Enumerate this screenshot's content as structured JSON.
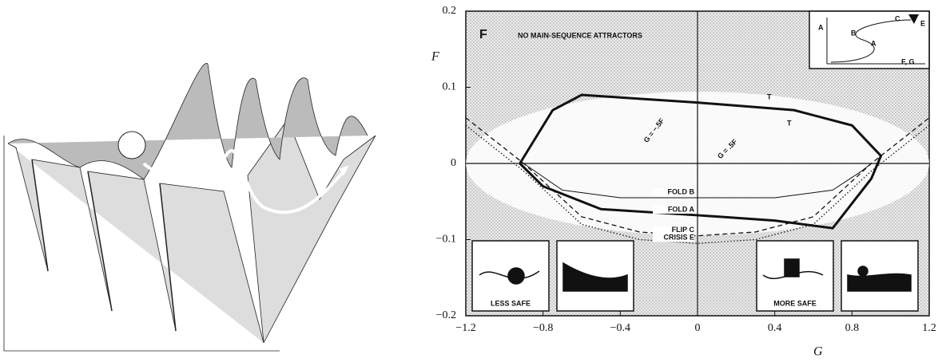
{
  "chart_data": {
    "type": "line",
    "panel_label": "F",
    "xlabel": "G",
    "ylabel": "F",
    "xlim": [
      -1.2,
      1.2
    ],
    "ylim": [
      -0.2,
      0.2
    ],
    "xticks": [
      {
        "value": -1.2,
        "label": "−1.2"
      },
      {
        "value": -0.8,
        "label": "−0.8"
      },
      {
        "value": -0.4,
        "label": "−0.4"
      },
      0,
      0.4,
      0.8,
      1.2
    ],
    "yticks": [
      {
        "value": -0.2,
        "label": "−0.2"
      },
      {
        "value": -0.1,
        "label": "−0.1"
      },
      0,
      0.1,
      0.2
    ],
    "annotations": [
      "NO MAIN-SEQUENCE ATTRACTORS",
      "G = −.5F",
      "G = .5F",
      "T",
      "T",
      "LESS SAFE",
      "MORE SAFE"
    ],
    "inset_labels": [
      "A",
      "B",
      "C",
      "E",
      "A",
      "F, G"
    ],
    "series": [
      {
        "name": "FOLD B",
        "color": "#111",
        "style": "solid",
        "width": 1,
        "x": [
          -0.9,
          -0.7,
          -0.4,
          0,
          0.4,
          0.7,
          0.85,
          0.9
        ],
        "values": [
          0.0,
          -0.035,
          -0.045,
          -0.045,
          -0.045,
          -0.035,
          -0.01,
          0.0
        ]
      },
      {
        "name": "FOLD A",
        "color": "#111",
        "style": "solid",
        "width": 3,
        "x": [
          -0.92,
          -0.8,
          -0.5,
          0,
          0.4,
          0.7,
          0.9,
          0.95,
          0.8,
          0.5,
          0,
          -0.3,
          -0.6,
          -0.75,
          -0.92
        ],
        "values": [
          0.0,
          -0.03,
          -0.06,
          -0.068,
          -0.075,
          -0.085,
          -0.02,
          0.01,
          0.05,
          0.07,
          0.08,
          0.085,
          0.09,
          0.07,
          0.0
        ]
      },
      {
        "name": "FLIP C",
        "color": "#111",
        "style": "dashed",
        "width": 1.3,
        "x": [
          -1.2,
          -0.9,
          -0.6,
          -0.3,
          0,
          0.3,
          0.6,
          0.9,
          1.2
        ],
        "values": [
          0.06,
          0.0,
          -0.07,
          -0.09,
          -0.095,
          -0.09,
          -0.07,
          0.0,
          0.06
        ]
      },
      {
        "name": "CRISIS E",
        "color": "#111",
        "style": "dotted",
        "width": 1.3,
        "x": [
          -1.2,
          -0.9,
          -0.6,
          -0.3,
          0,
          0.3,
          0.6,
          0.9,
          1.2
        ],
        "values": [
          0.05,
          -0.01,
          -0.08,
          -0.1,
          -0.105,
          -0.1,
          -0.08,
          -0.01,
          0.05
        ]
      }
    ]
  }
}
